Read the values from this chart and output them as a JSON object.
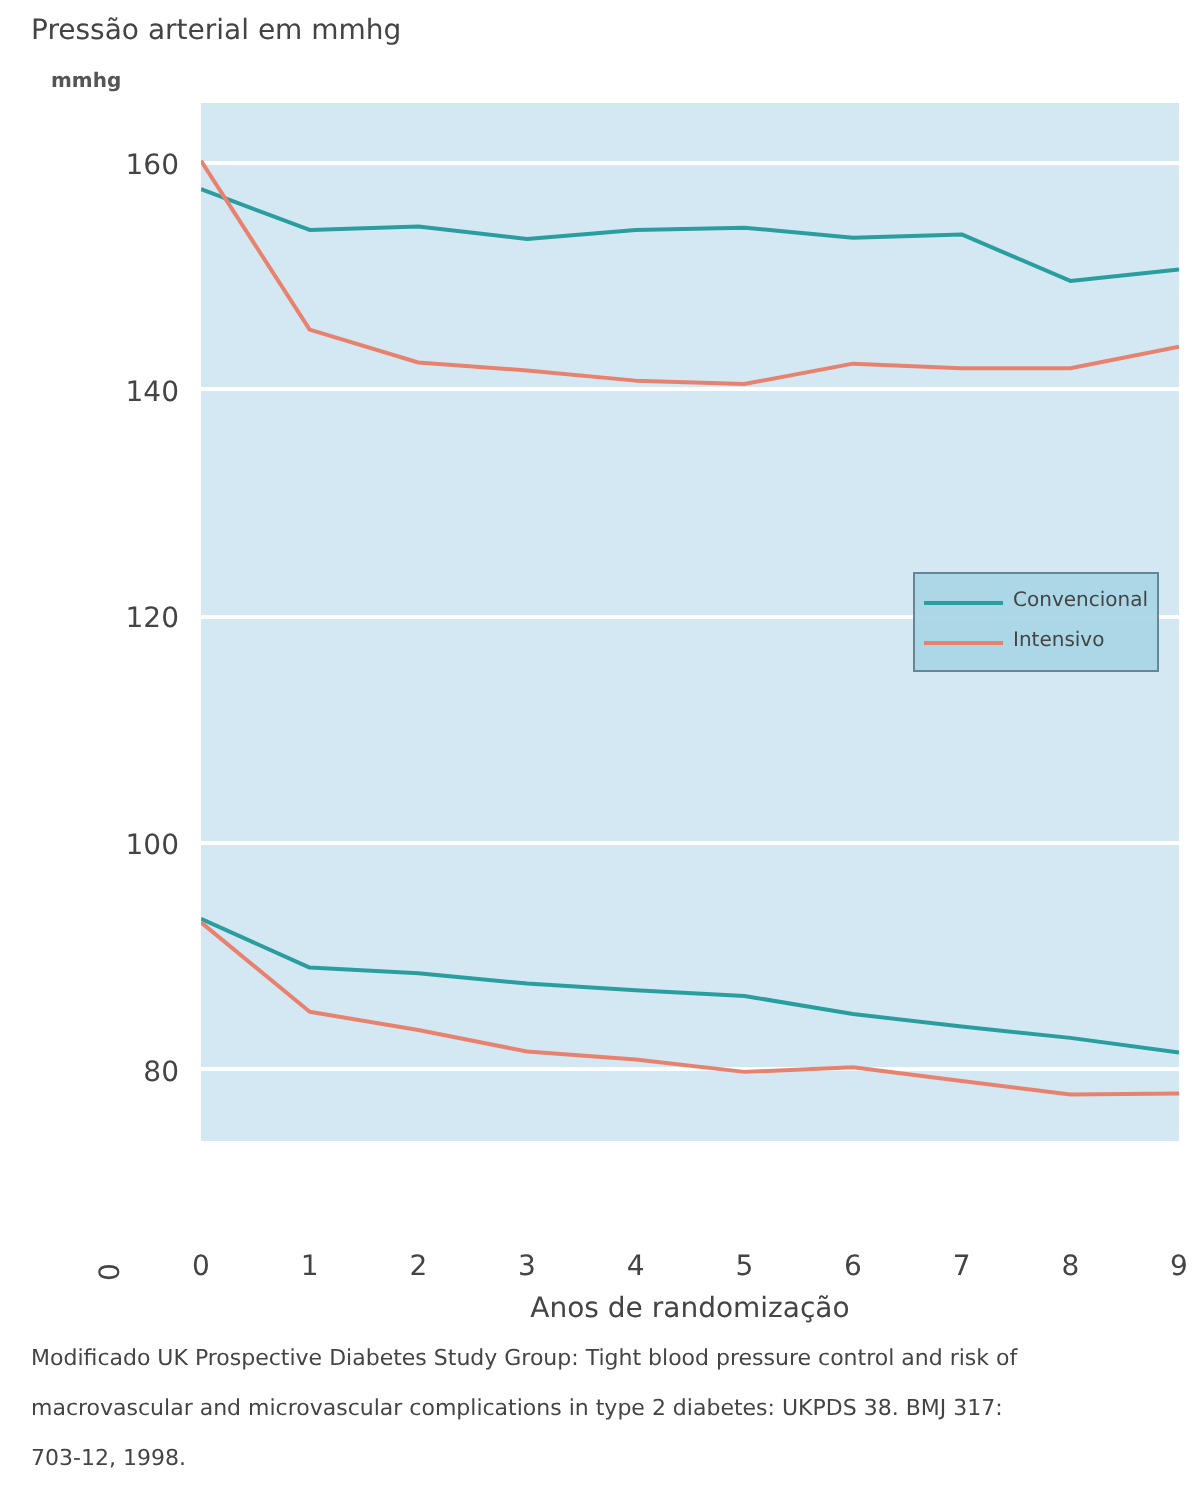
{
  "chart_data": {
    "type": "line",
    "title": "Pressão arterial em mmhg",
    "ylabel": "mmhg",
    "xlabel": "Anos de randomização",
    "x": [
      0,
      1,
      2,
      3,
      4,
      5,
      6,
      7,
      8,
      9
    ],
    "xlim": [
      0,
      9
    ],
    "xticks": [
      0,
      1,
      2,
      3,
      4,
      5,
      6,
      7,
      8,
      9
    ],
    "ylim": [
      73.7,
      165.3
    ],
    "yticks": [
      80,
      100,
      120,
      140,
      160
    ],
    "grid": "y",
    "legend": "right",
    "series": [
      {
        "name": "Convencional",
        "color": "#2a9d9e",
        "values": [
          157.7,
          154.1,
          154.4,
          153.3,
          154.1,
          154.3,
          153.4,
          153.7,
          149.6,
          150.6
        ]
      },
      {
        "name": "Intensivo",
        "color": "#e8826e",
        "values": [
          160.2,
          145.3,
          142.4,
          141.7,
          140.8,
          140.5,
          142.3,
          141.9,
          141.9,
          143.8
        ]
      },
      {
        "color": "#2a9d9e",
        "values": [
          93.3,
          89.0,
          88.5,
          87.6,
          87.0,
          86.5,
          84.9,
          83.8,
          82.8,
          81.5
        ]
      },
      {
        "color": "#e8826e",
        "values": [
          93.0,
          85.1,
          83.5,
          81.6,
          80.9,
          79.8,
          80.2,
          79.0,
          77.8,
          77.9
        ]
      }
    ],
    "annotations": [
      "0",
      "Modificado UK Prospective Diabetes Study Group: Tight blood pressure control and risk of macrovascular and microvascular complications in type 2 diabetes: UKPDS 38. BMJ 317: 703-12, 1998."
    ]
  }
}
